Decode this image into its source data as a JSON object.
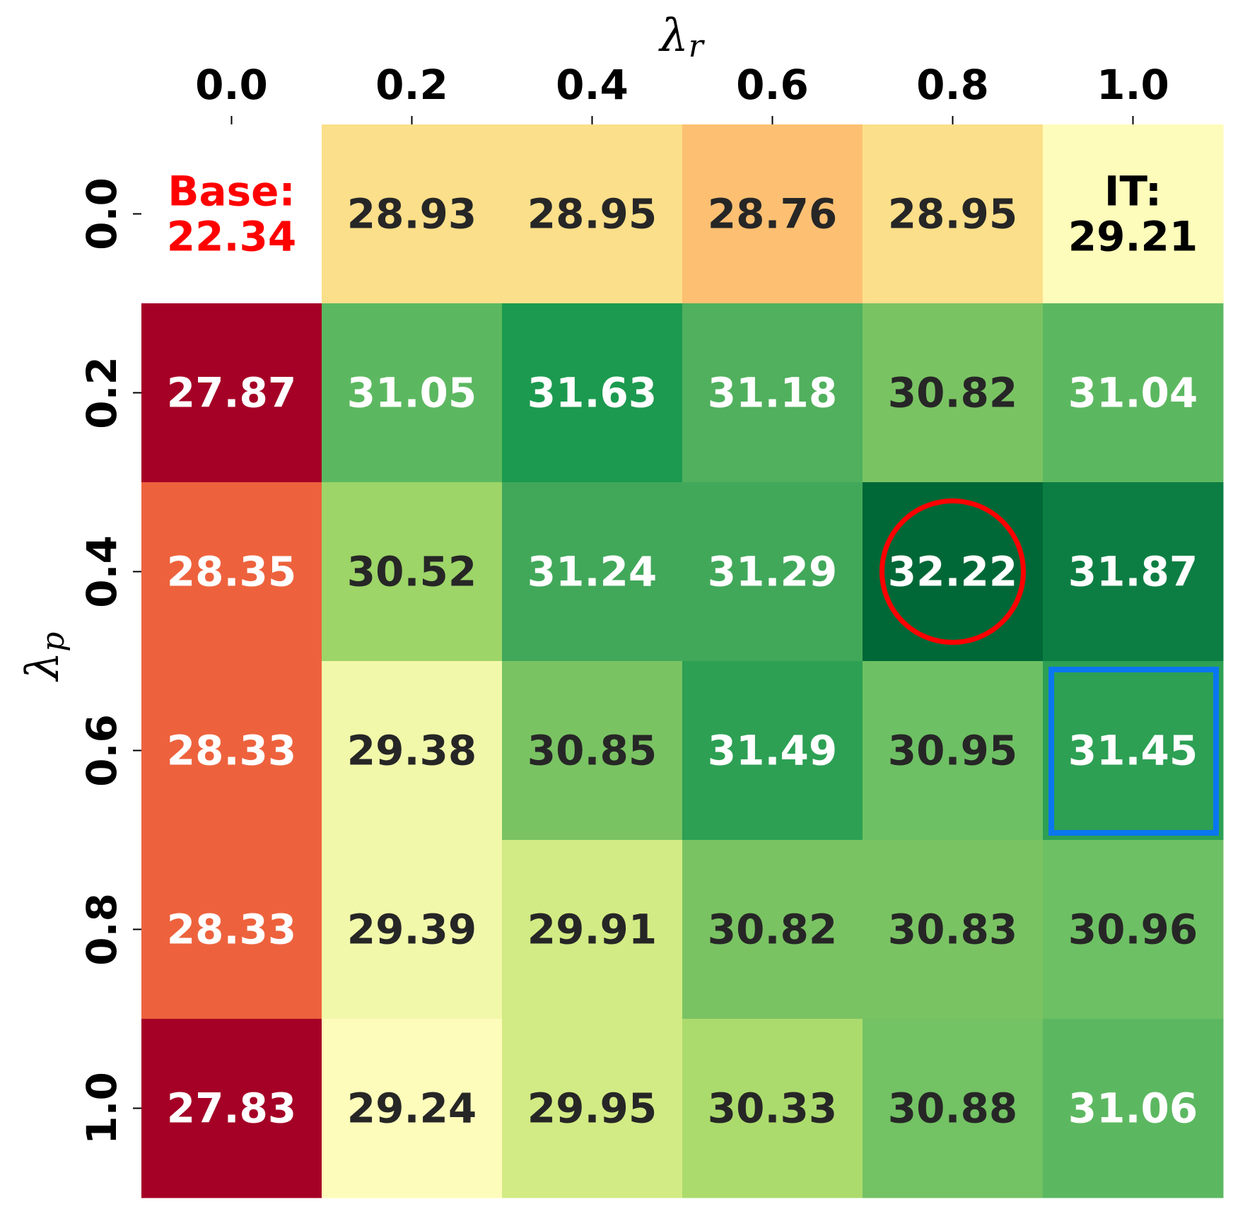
{
  "chart_data": {
    "type": "heatmap",
    "x_axis": {
      "symbol": "λ",
      "subscript": "r",
      "ticks": [
        "0.0",
        "0.2",
        "0.4",
        "0.6",
        "0.8",
        "1.0"
      ],
      "position": "top"
    },
    "y_axis": {
      "symbol": "λ",
      "subscript": "p",
      "ticks": [
        "0.0",
        "0.2",
        "0.4",
        "0.6",
        "0.8",
        "1.0"
      ],
      "position": "left"
    },
    "colormap": "RdYlGn",
    "values": [
      [
        null,
        28.93,
        28.95,
        28.76,
        28.95,
        29.21
      ],
      [
        27.87,
        31.05,
        31.63,
        31.18,
        30.82,
        31.04
      ],
      [
        28.35,
        30.52,
        31.24,
        31.29,
        32.22,
        31.87
      ],
      [
        28.33,
        29.38,
        30.85,
        31.49,
        30.95,
        31.45
      ],
      [
        28.33,
        29.39,
        29.91,
        30.82,
        30.83,
        30.96
      ],
      [
        27.83,
        29.24,
        29.95,
        30.33,
        30.88,
        31.06
      ]
    ],
    "cell_labels": [
      [
        [
          "Base:",
          "22.34"
        ],
        [
          "28.93"
        ],
        [
          "28.95"
        ],
        [
          "28.76"
        ],
        [
          "28.95"
        ],
        [
          "IT:",
          "29.21"
        ]
      ],
      [
        [
          "27.87"
        ],
        [
          "31.05"
        ],
        [
          "31.63"
        ],
        [
          "31.18"
        ],
        [
          "30.82"
        ],
        [
          "31.04"
        ]
      ],
      [
        [
          "28.35"
        ],
        [
          "30.52"
        ],
        [
          "31.24"
        ],
        [
          "31.29"
        ],
        [
          "32.22"
        ],
        [
          "31.87"
        ]
      ],
      [
        [
          "28.33"
        ],
        [
          "29.38"
        ],
        [
          "30.85"
        ],
        [
          "31.49"
        ],
        [
          "30.95"
        ],
        [
          "31.45"
        ]
      ],
      [
        [
          "28.33"
        ],
        [
          "29.39"
        ],
        [
          "29.91"
        ],
        [
          "30.82"
        ],
        [
          "30.83"
        ],
        [
          "30.96"
        ]
      ],
      [
        [
          "27.83"
        ],
        [
          "29.24"
        ],
        [
          "29.95"
        ],
        [
          "30.33"
        ],
        [
          "30.88"
        ],
        [
          "31.06"
        ]
      ]
    ],
    "cell_colors": [
      [
        "#ffffff",
        "#fbdf8a",
        "#fbdf8a",
        "#fdc072",
        "#fbdf8a",
        "#fefcba"
      ],
      [
        "#a50026",
        "#5cb860",
        "#1c9a4f",
        "#50b05d",
        "#7ac363",
        "#5cb860"
      ],
      [
        "#ed623d",
        "#9dd568",
        "#41a85a",
        "#41a85a",
        "#006837",
        "#0d7e43"
      ],
      [
        "#ed623d",
        "#f2f8aa",
        "#7ac363",
        "#2da054",
        "#6ec064",
        "#2da054"
      ],
      [
        "#ed623d",
        "#f2f8aa",
        "#d3eb84",
        "#7ac363",
        "#7ac363",
        "#6ec064"
      ],
      [
        "#a50026",
        "#fefcba",
        "#d3eb84",
        "#acdb6d",
        "#73c264",
        "#5cb860"
      ]
    ],
    "cell_text_colors": [
      [
        "#ff0000",
        "#262626",
        "#262626",
        "#262626",
        "#262626",
        "#000000"
      ],
      [
        "#ffffff",
        "#ffffff",
        "#ffffff",
        "#ffffff",
        "#262626",
        "#ffffff"
      ],
      [
        "#ffffff",
        "#262626",
        "#ffffff",
        "#ffffff",
        "#ffffff",
        "#ffffff"
      ],
      [
        "#ffffff",
        "#262626",
        "#262626",
        "#ffffff",
        "#262626",
        "#ffffff"
      ],
      [
        "#ffffff",
        "#262626",
        "#262626",
        "#262626",
        "#262626",
        "#262626"
      ],
      [
        "#ffffff",
        "#262626",
        "#262626",
        "#262626",
        "#262626",
        "#ffffff"
      ]
    ],
    "highlights": [
      {
        "shape": "circle",
        "row": 2,
        "col": 4,
        "color": "#ff0000"
      },
      {
        "shape": "square",
        "row": 3,
        "col": 5,
        "color": "#0a76f0"
      }
    ],
    "colorbar": false,
    "grid": false,
    "legend": "none"
  }
}
